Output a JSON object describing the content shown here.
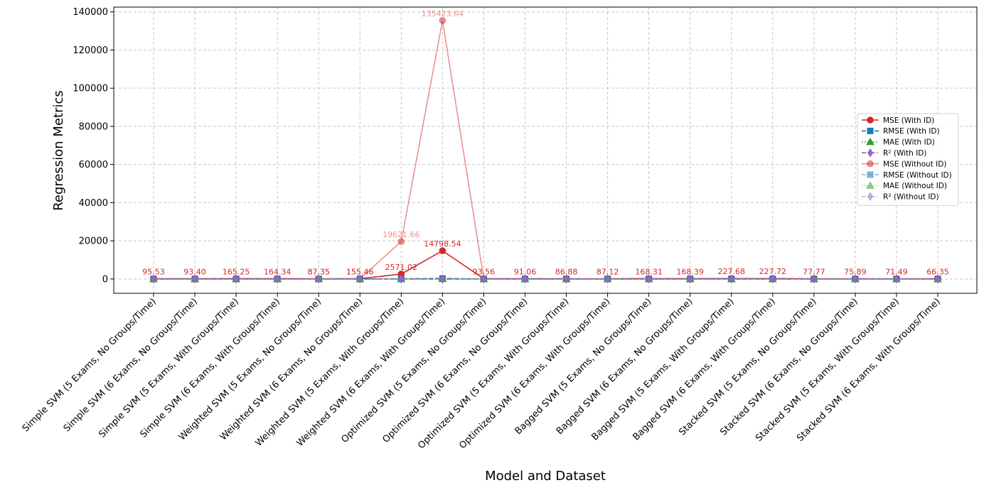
{
  "chart_data": {
    "type": "line",
    "title": "",
    "xlabel": "Model and Dataset",
    "ylabel": "Regression Metrics",
    "ylim": [
      -7500,
      142500
    ],
    "yticks": [
      0,
      20000,
      40000,
      60000,
      80000,
      100000,
      120000,
      140000
    ],
    "grid": true,
    "legend_position": "center-right",
    "categories": [
      "Simple SVM (5 Exams, No Groups/Time)",
      "Simple SVM (6 Exams, No Groups/Time)",
      "Simple SVM (5 Exams, With Groups/Time)",
      "Simple SVM (6 Exams, With Groups/Time)",
      "Weighted SVM (5 Exams, No Groups/Time)",
      "Weighted SVM (6 Exams, No Groups/Time)",
      "Weighted SVM (5 Exams, With Groups/Time)",
      "Weighted SVM (6 Exams, With Groups/Time)",
      "Optimized SVM (5 Exams, No Groups/Time)",
      "Optimized SVM (6 Exams, No Groups/Time)",
      "Optimized SVM (5 Exams, With Groups/Time)",
      "Optimized SVM (6 Exams, With Groups/Time)",
      "Bagged SVM (5 Exams, No Groups/Time)",
      "Bagged SVM (6 Exams, No Groups/Time)",
      "Bagged SVM (5 Exams, With Groups/Time)",
      "Bagged SVM (6 Exams, With Groups/Time)",
      "Stacked SVM (5 Exams, No Groups/Time)",
      "Stacked SVM (6 Exams, No Groups/Time)",
      "Stacked SVM (5 Exams, With Groups/Time)",
      "Stacked SVM (6 Exams, With Groups/Time)"
    ],
    "series": [
      {
        "name": "MSE (With ID)",
        "color": "#d62728",
        "marker": "circle",
        "linestyle": "solid",
        "alpha": 1,
        "show_labels": true,
        "values": [
          95.53,
          93.4,
          165.25,
          164.34,
          87.35,
          155.46,
          2571.02,
          14798.54,
          93.56,
          91.06,
          86.88,
          87.12,
          168.31,
          168.39,
          227.68,
          227.72,
          77.77,
          75.89,
          71.49,
          66.35
        ],
        "labels": [
          "95.53",
          "93.40",
          "165.25",
          "164.34",
          "87.35",
          "155.46",
          "2571.02",
          "14798.54",
          "93.56",
          "91.06",
          "86.88",
          "87.12",
          "168.31",
          "168.39",
          "227.68",
          "227.72",
          "77.77",
          "75.89",
          "71.49",
          "66.35"
        ]
      },
      {
        "name": "RMSE (With ID)",
        "color": "#1f77b4",
        "marker": "square",
        "linestyle": "dashed",
        "alpha": 1,
        "show_labels": false,
        "values": [
          9.77,
          9.66,
          12.86,
          12.82,
          9.35,
          12.47,
          50.7,
          121.65,
          9.67,
          9.54,
          9.32,
          9.33,
          12.97,
          12.98,
          15.09,
          15.09,
          8.82,
          8.71,
          8.46,
          8.15
        ]
      },
      {
        "name": "MAE (With ID)",
        "color": "#2ca02c",
        "marker": "triangle",
        "linestyle": "dotted",
        "alpha": 1,
        "show_labels": false,
        "values": [
          7.5,
          7.4,
          9.8,
          9.8,
          7.2,
          9.5,
          30.1,
          75.3,
          7.4,
          7.3,
          7.1,
          7.1,
          9.9,
          9.9,
          11.6,
          11.6,
          6.9,
          6.8,
          6.6,
          6.4
        ]
      },
      {
        "name": "R² (With ID)",
        "color": "#9467bd",
        "marker": "diamond",
        "linestyle": "dashdot",
        "alpha": 1,
        "show_labels": false,
        "values": [
          0.85,
          0.86,
          0.74,
          0.75,
          0.86,
          0.76,
          -3.0,
          -22.0,
          0.85,
          0.86,
          0.86,
          0.86,
          0.74,
          0.74,
          0.65,
          0.65,
          0.88,
          0.88,
          0.89,
          0.9
        ]
      },
      {
        "name": "MSE (Without ID)",
        "color": "#d62728",
        "marker": "circle",
        "linestyle": "solid",
        "alpha": 0.5,
        "show_labels": true,
        "values": [
          95.53,
          93.4,
          165.25,
          164.34,
          87.35,
          155.46,
          19621.66,
          135423.64,
          93.56,
          91.06,
          86.88,
          87.12,
          168.31,
          168.39,
          227.68,
          227.72,
          77.77,
          75.89,
          71.49,
          66.35
        ],
        "labels": [
          "",
          "",
          "",
          "",
          "87.35",
          "155.46",
          "19621.66",
          "135423.64",
          "",
          "",
          "",
          "",
          "",
          "",
          "",
          "",
          "",
          "",
          "",
          ""
        ]
      },
      {
        "name": "RMSE (Without ID)",
        "color": "#1f77b4",
        "marker": "square",
        "linestyle": "dashed",
        "alpha": 0.5,
        "show_labels": false,
        "values": [
          9.77,
          9.66,
          12.86,
          12.82,
          9.35,
          12.47,
          140.08,
          368.0,
          9.67,
          9.54,
          9.32,
          9.33,
          12.97,
          12.98,
          15.09,
          15.09,
          8.82,
          8.71,
          8.46,
          8.15
        ]
      },
      {
        "name": "MAE (Without ID)",
        "color": "#2ca02c",
        "marker": "triangle",
        "linestyle": "dotted",
        "alpha": 0.5,
        "show_labels": false,
        "values": [
          7.5,
          7.4,
          9.8,
          9.8,
          7.2,
          9.5,
          98.0,
          251.0,
          7.4,
          7.3,
          7.1,
          7.1,
          9.9,
          9.9,
          11.6,
          11.6,
          6.9,
          6.8,
          6.6,
          6.4
        ]
      },
      {
        "name": "R² (Without ID)",
        "color": "#9467bd",
        "marker": "diamond",
        "linestyle": "dashdot",
        "alpha": 0.5,
        "show_labels": false,
        "values": [
          0.85,
          0.86,
          0.74,
          0.75,
          0.86,
          0.76,
          -30.0,
          -212.0,
          0.85,
          0.86,
          0.86,
          0.86,
          0.74,
          0.74,
          0.65,
          0.65,
          0.88,
          0.88,
          0.89,
          0.9
        ]
      }
    ]
  }
}
